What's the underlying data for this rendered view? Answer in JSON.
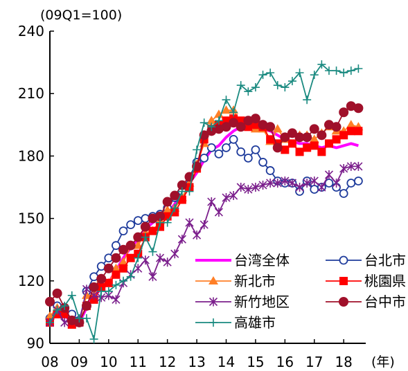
{
  "chart_data": {
    "type": "line",
    "y_unit_label": "(09Q1=100)",
    "x_unit_label": "(年)",
    "ylim": [
      90,
      240
    ],
    "yticks": [
      90,
      120,
      150,
      180,
      210,
      240
    ],
    "xlim": [
      2008.0,
      2018.75
    ],
    "xtick_positions": [
      2008,
      2009,
      2010,
      2011,
      2012,
      2013,
      2014,
      2015,
      2016,
      2017,
      2018
    ],
    "xtick_labels": [
      "08",
      "09",
      "10",
      "11",
      "12",
      "13",
      "14",
      "15",
      "16",
      "17",
      "18"
    ],
    "grid": false,
    "legend_position": "bottom-right",
    "x": [
      2008.0,
      2008.25,
      2008.5,
      2008.75,
      2009.0,
      2009.25,
      2009.5,
      2009.75,
      2010.0,
      2010.25,
      2010.5,
      2010.75,
      2011.0,
      2011.25,
      2011.5,
      2011.75,
      2012.0,
      2012.25,
      2012.5,
      2012.75,
      2013.0,
      2013.25,
      2013.5,
      2013.75,
      2014.0,
      2014.25,
      2014.5,
      2014.75,
      2015.0,
      2015.25,
      2015.5,
      2015.75,
      2016.0,
      2016.25,
      2016.5,
      2016.75,
      2017.0,
      2017.25,
      2017.5,
      2017.75,
      2018.0,
      2018.25,
      2018.5
    ],
    "series": [
      {
        "name": "台湾全体",
        "color": "#ff00ff",
        "marker": "none",
        "values": [
          101,
          105,
          103,
          101,
          100,
          107,
          113,
          116,
          119,
          125,
          131,
          136,
          140,
          145,
          148,
          150,
          152,
          157,
          163,
          167,
          172,
          178,
          183,
          185,
          189,
          192,
          194,
          195,
          194,
          193,
          192,
          190,
          188,
          187,
          186,
          186,
          185,
          184,
          185,
          184,
          185,
          186,
          185
        ]
      },
      {
        "name": "台北市",
        "color": "#1f3c9c",
        "marker": "open-circle",
        "values": [
          102,
          108,
          106,
          104,
          101,
          115,
          122,
          127,
          131,
          137,
          144,
          147,
          149,
          150,
          151,
          152,
          155,
          160,
          163,
          170,
          177,
          179,
          184,
          181,
          184,
          188,
          182,
          179,
          183,
          177,
          173,
          168,
          167,
          167,
          163,
          168,
          164,
          165,
          167,
          165,
          162,
          167,
          168
        ]
      },
      {
        "name": "新北市",
        "color": "#ff7f27",
        "marker": "triangle",
        "values": [
          103,
          107,
          104,
          100,
          100,
          113,
          113,
          121,
          119,
          126,
          129,
          137,
          137,
          143,
          144,
          149,
          154,
          155,
          160,
          167,
          176,
          186,
          197,
          200,
          202,
          202,
          196,
          196,
          193,
          193,
          187,
          193,
          188,
          191,
          190,
          190,
          188,
          191,
          194,
          192,
          192,
          195,
          194
        ]
      },
      {
        "name": "桃園県",
        "color": "#ff0000",
        "marker": "square",
        "values": [
          100,
          104,
          104,
          99,
          100,
          108,
          111,
          117,
          119,
          123,
          126,
          131,
          133,
          141,
          144,
          146,
          151,
          153,
          159,
          165,
          174,
          188,
          193,
          195,
          197,
          198,
          197,
          194,
          195,
          194,
          188,
          186,
          183,
          186,
          182,
          184,
          185,
          182,
          186,
          188,
          190,
          192,
          192
        ]
      },
      {
        "name": "新竹地区",
        "color": "#7b1f8c",
        "marker": "asterisk",
        "values": [
          100,
          106,
          100,
          101,
          100,
          116,
          113,
          112,
          113,
          111,
          119,
          123,
          126,
          130,
          122,
          131,
          129,
          133,
          140,
          148,
          142,
          147,
          158,
          153,
          160,
          161,
          165,
          164,
          165,
          166,
          167,
          167,
          168,
          167,
          165,
          167,
          168,
          165,
          171,
          167,
          174,
          175,
          175
        ]
      },
      {
        "name": "台中市",
        "color": "#a0102a",
        "marker": "filled-circle",
        "values": [
          110,
          114,
          107,
          101,
          100,
          108,
          117,
          121,
          126,
          131,
          135,
          137,
          141,
          146,
          150,
          151,
          158,
          161,
          166,
          170,
          175,
          190,
          192,
          193,
          194,
          196,
          194,
          197,
          198,
          195,
          194,
          184,
          189,
          191,
          189,
          189,
          193,
          190,
          195,
          194,
          201,
          204,
          203
        ]
      },
      {
        "name": "高雄市",
        "color": "#1a8a80",
        "marker": "plus",
        "values": [
          100,
          106,
          108,
          113,
          102,
          102,
          92,
          115,
          115,
          118,
          120,
          122,
          131,
          141,
          134,
          148,
          148,
          155,
          163,
          163,
          183,
          196,
          194,
          197,
          207,
          201,
          214,
          211,
          213,
          219,
          220,
          214,
          213,
          216,
          220,
          207,
          219,
          224,
          221,
          221,
          220,
          221,
          222
        ]
      }
    ]
  }
}
